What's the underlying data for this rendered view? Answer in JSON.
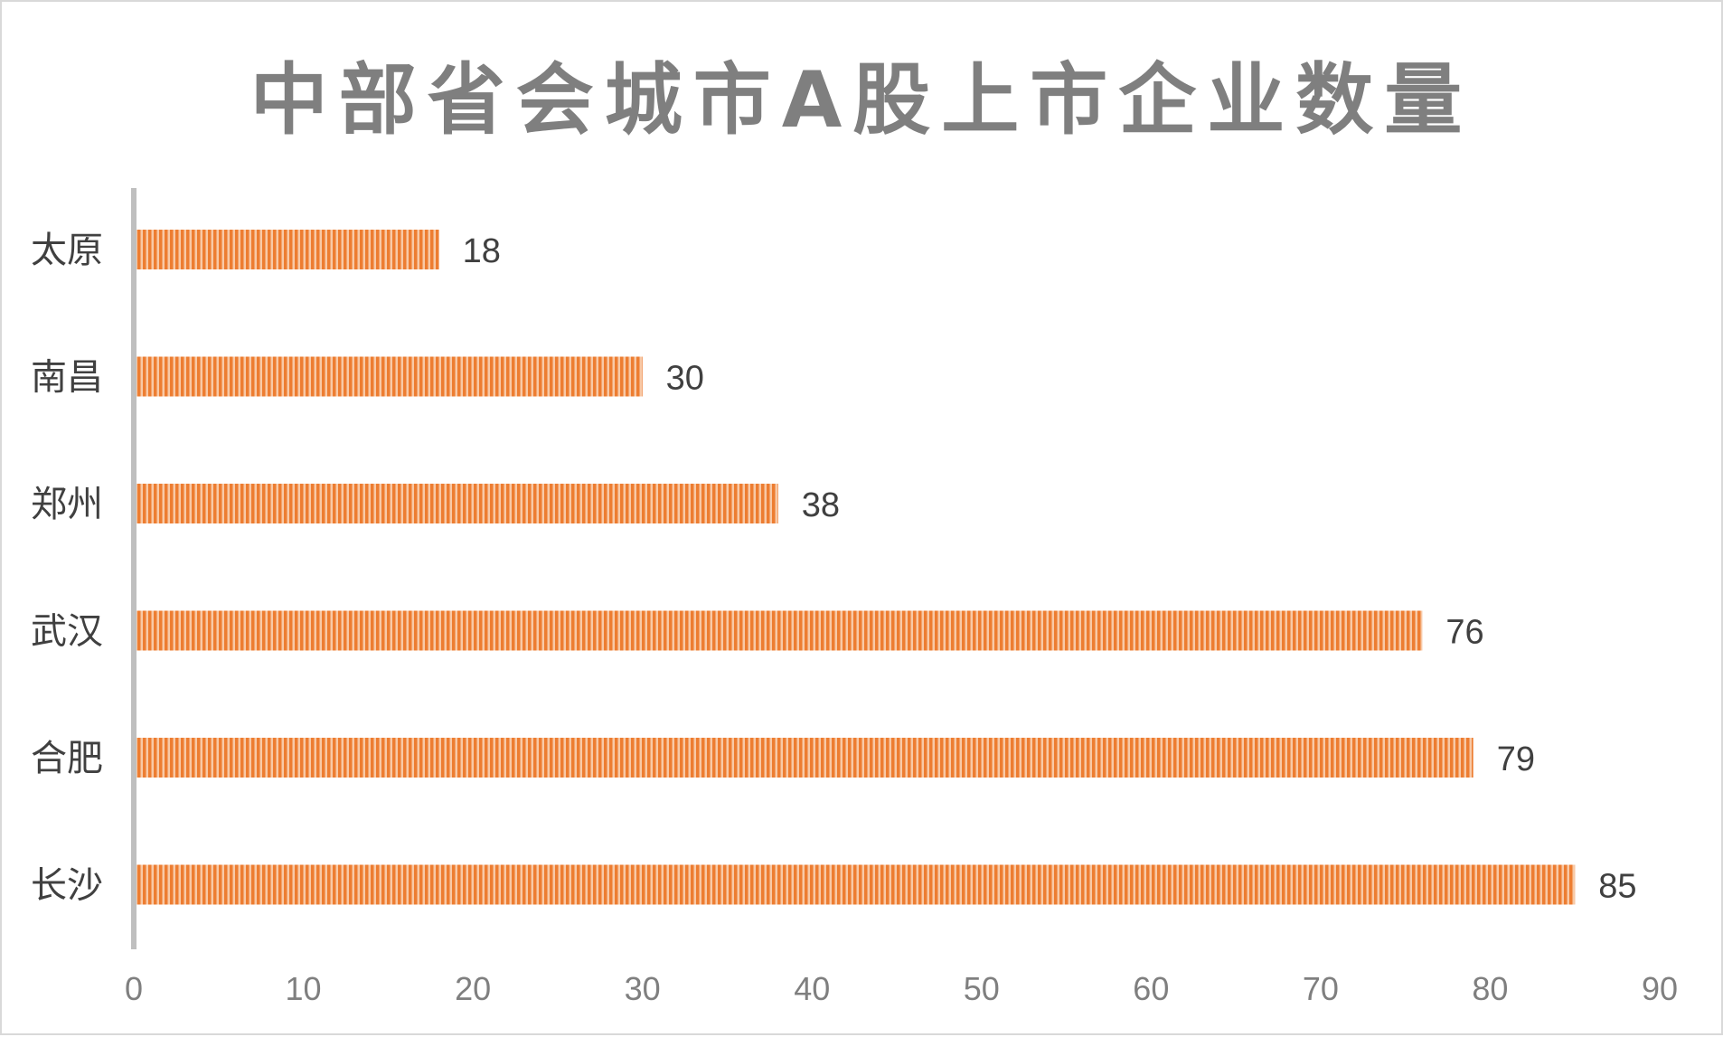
{
  "chart_data": {
    "type": "bar",
    "orientation": "horizontal",
    "title": "中部省会城市A股上市企业数量",
    "categories": [
      "太原",
      "南昌",
      "郑州",
      "武汉",
      "合肥",
      "长沙"
    ],
    "values": [
      18,
      30,
      38,
      76,
      79,
      85
    ],
    "xlim": [
      0,
      90
    ],
    "x_ticks": [
      "0",
      "10",
      "20",
      "30",
      "40",
      "50",
      "60",
      "70",
      "80",
      "90"
    ],
    "xlabel": "",
    "ylabel": "",
    "grid": false,
    "legend": "none",
    "data_labels": true,
    "bar_color": "#ed7d31",
    "bar_stripe_color": "#f8c9a6",
    "axis_color": "#bfbfbf"
  }
}
